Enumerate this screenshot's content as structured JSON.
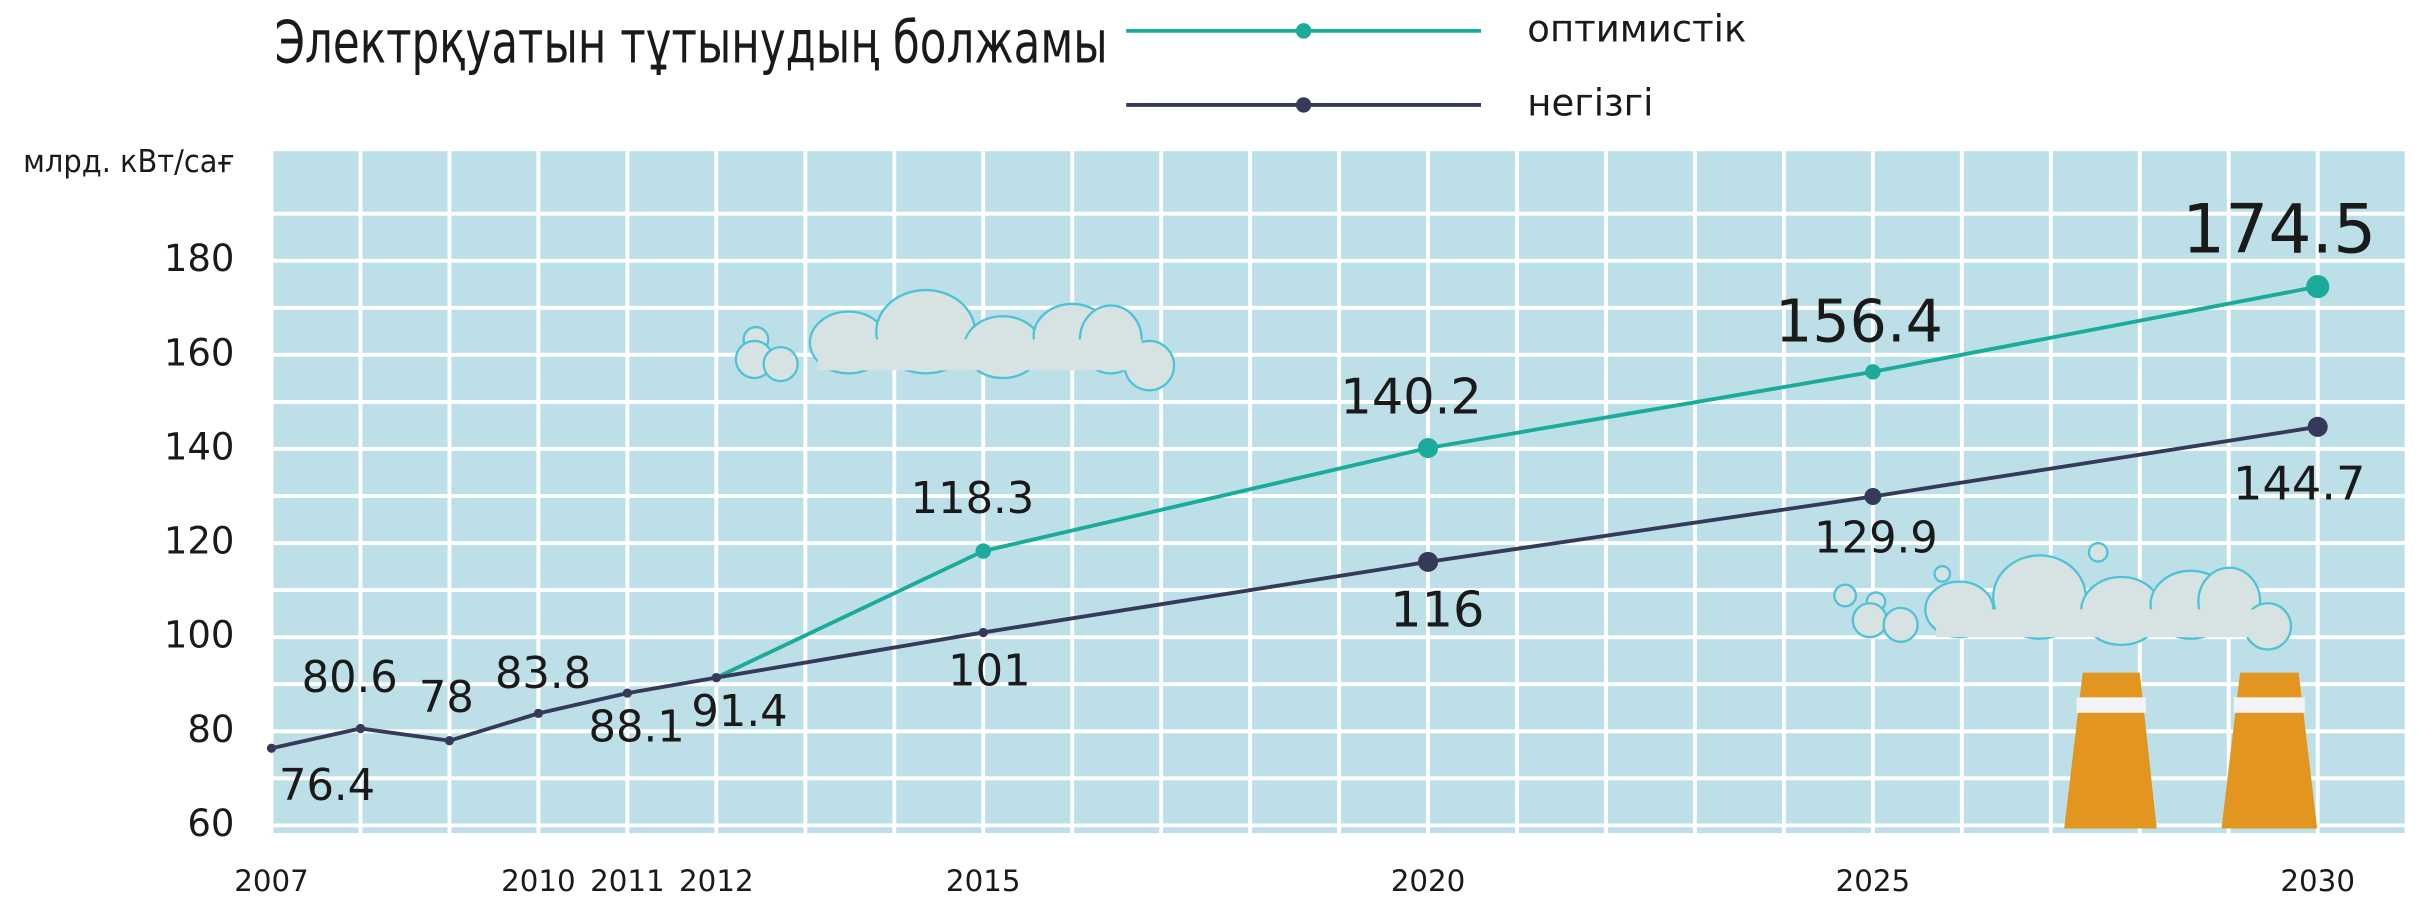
{
  "chart_data": {
    "type": "line",
    "title": "Электрқуатын тұтынудың болжамы",
    "y_axis_label": "млрд. кВт/сағ",
    "xlim": [
      2007,
      2031
    ],
    "ylim": [
      60,
      200
    ],
    "xticks": [
      2007,
      2010,
      2011,
      2012,
      2015,
      2020,
      2025,
      2030
    ],
    "yticks": [
      60,
      80,
      100,
      120,
      140,
      160,
      180
    ],
    "grid": true,
    "legend": "top",
    "series": [
      {
        "name": "оптимистік",
        "color": "#1aab9b",
        "x": [
          2012,
          2015,
          2020,
          2025,
          2030
        ],
        "values": [
          91.4,
          118.3,
          140.2,
          156.4,
          174.5
        ]
      },
      {
        "name": "негізгі",
        "color": "#363a5a",
        "x": [
          2007,
          2008,
          2009,
          2010,
          2011,
          2012,
          2015,
          2020,
          2025,
          2030
        ],
        "values": [
          76.4,
          80.6,
          78,
          83.8,
          88.1,
          91.4,
          101,
          116,
          129.9,
          144.7
        ]
      }
    ]
  }
}
